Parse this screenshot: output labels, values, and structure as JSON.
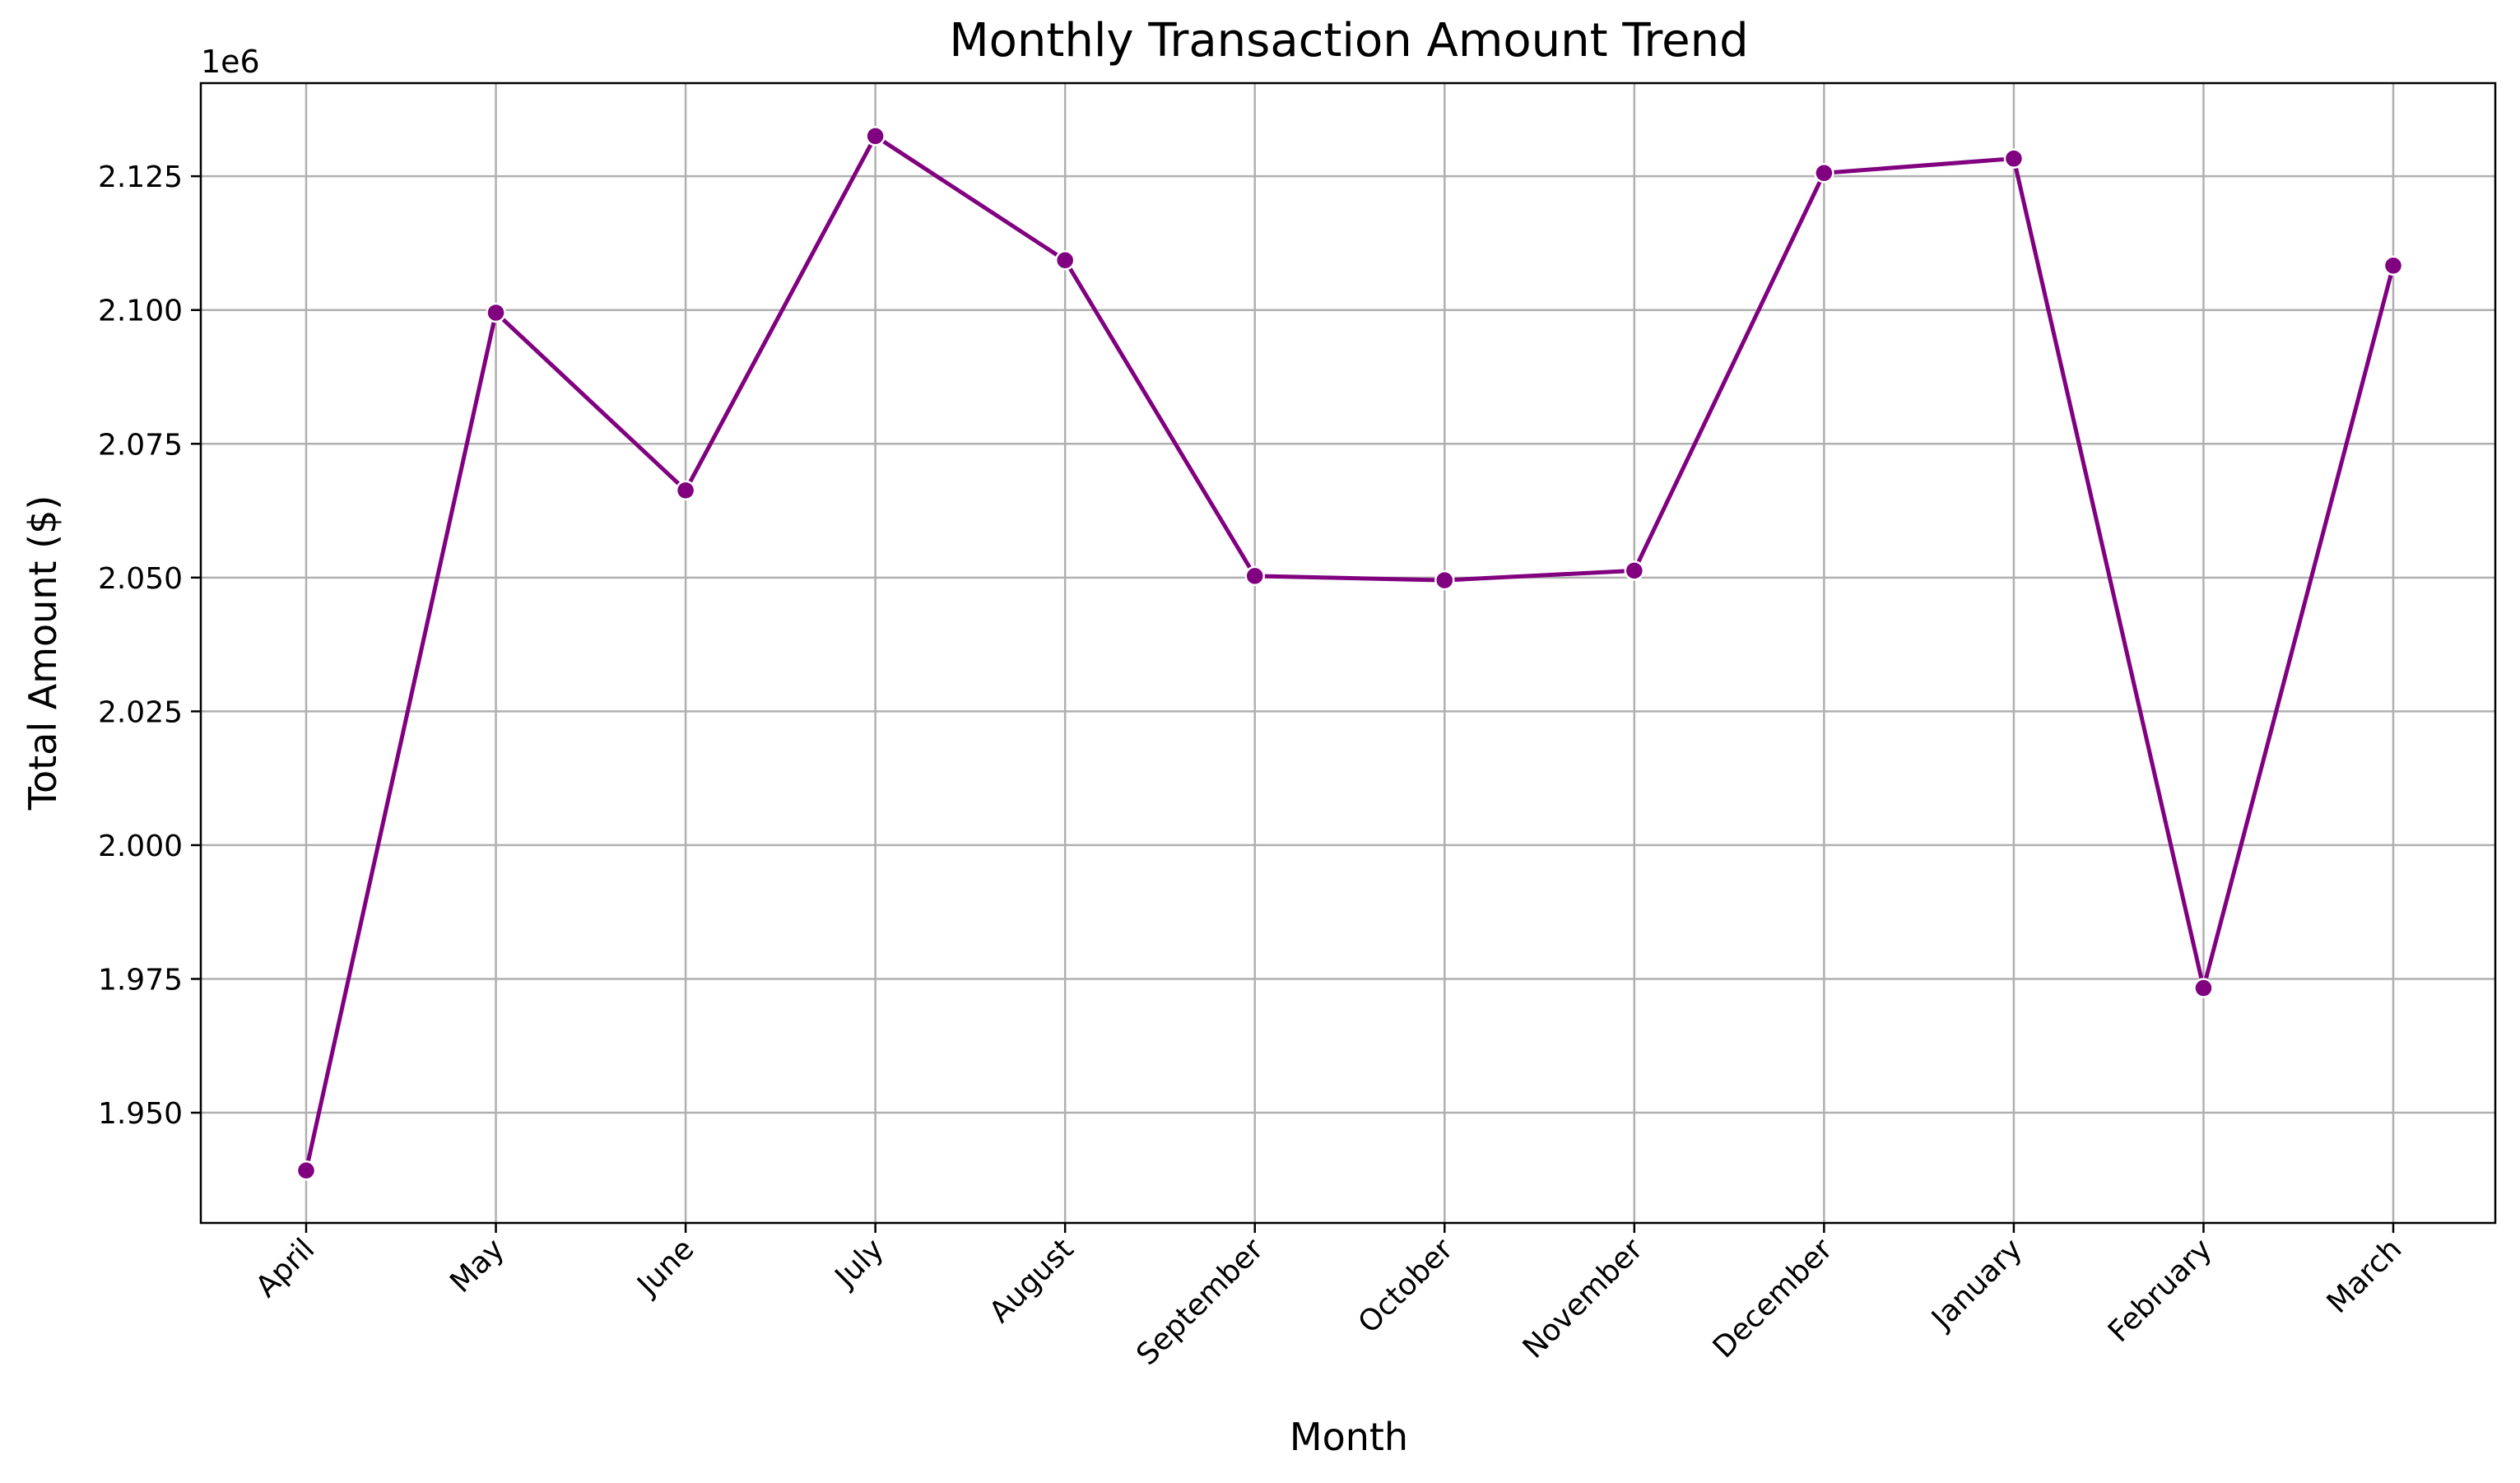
{
  "chart_data": {
    "type": "line",
    "title": "Monthly Transaction Amount Trend",
    "xlabel": "Month",
    "ylabel": "Total Amount ($)",
    "y_offset_label": "1e6",
    "categories": [
      "April",
      "May",
      "June",
      "July",
      "August",
      "September",
      "October",
      "November",
      "December",
      "January",
      "February",
      "March"
    ],
    "series": [
      {
        "values": [
          1.9392,
          2.0995,
          2.0663,
          2.1325,
          2.1093,
          2.0503,
          2.0495,
          2.0513,
          2.1256,
          2.1283,
          1.9733,
          2.1083
        ],
        "color": "#800080"
      }
    ],
    "y_ticks": [
      1.95,
      1.975,
      2.0,
      2.025,
      2.05,
      2.075,
      2.1,
      2.125
    ],
    "y_tick_labels": [
      "1.950",
      "1.975",
      "2.000",
      "2.025",
      "2.050",
      "2.075",
      "2.100",
      "2.125"
    ],
    "ylim": [
      1.9294,
      2.1424
    ],
    "grid": true,
    "marker": "circle",
    "colors": {
      "line": "#800080",
      "grid": "#b0b0b0",
      "axes": "#000000"
    }
  }
}
